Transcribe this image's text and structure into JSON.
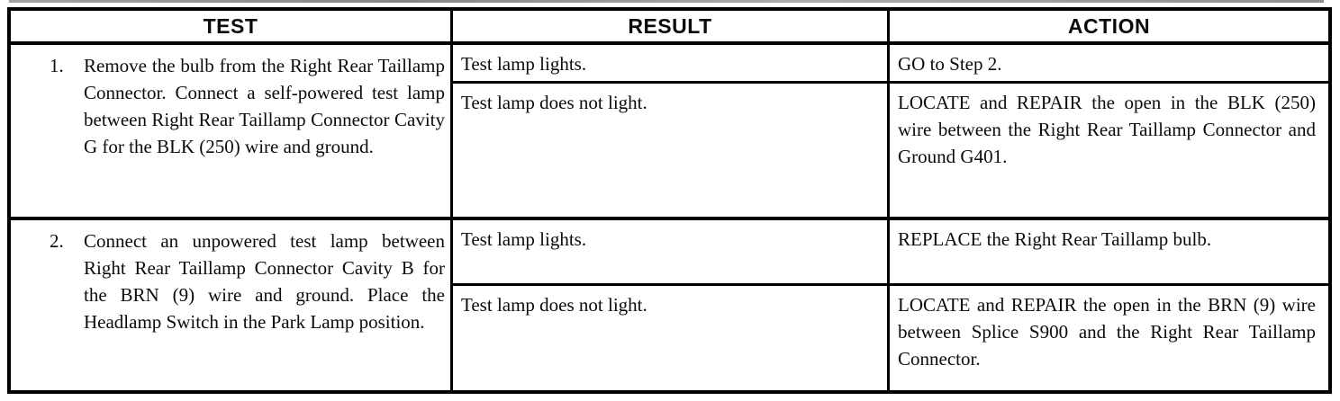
{
  "table": {
    "headers": [
      "TEST",
      "RESULT",
      "ACTION"
    ],
    "rows": [
      {
        "step": "1.",
        "test": "Remove the bulb from the Right Rear Taillamp Connector. Connect a self-powered test lamp between Right Rear Taillamp Connector Cavity G for the BLK (250) wire and ground.",
        "outcomes": [
          {
            "result": "Test lamp lights.",
            "action": "GO to Step 2."
          },
          {
            "result": "Test lamp does not light.",
            "action": "LOCATE and REPAIR the open in the BLK (250) wire between the Right Rear Taillamp Connector and Ground G401."
          }
        ]
      },
      {
        "step": "2.",
        "test": "Connect an unpowered test lamp between Right Rear Taillamp Connector Cavity B for the BRN (9) wire and ground. Place the Headlamp Switch in the Park Lamp position.",
        "outcomes": [
          {
            "result": "Test lamp lights.",
            "action": "REPLACE the Right Rear Taillamp bulb."
          },
          {
            "result": "Test lamp does not light.",
            "action": "LOCATE and REPAIR the open in the BRN (9) wire between Splice S900 and the Right Rear Taillamp Connector."
          }
        ]
      }
    ]
  },
  "colors": {
    "ink": "#0b0b0b",
    "paper": "#fffffe",
    "border": "#000000"
  }
}
